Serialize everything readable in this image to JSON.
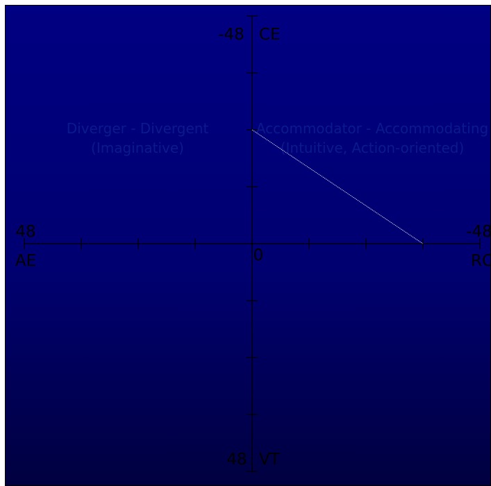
{
  "chart_data": {
    "type": "line",
    "title": "",
    "background_gradient": [
      "#000082",
      "#000040"
    ],
    "line_color": "#c8c8e0",
    "quadrant_text_color": "#0a1a8c",
    "axes": {
      "x": {
        "left_value": "48",
        "right_value": "-48",
        "left_label": "AE",
        "right_label": "RO",
        "range": [
          48,
          -48
        ],
        "tick_step": 12
      },
      "y": {
        "top_value": "-48",
        "bottom_value": "48",
        "top_label": "CE",
        "bottom_label": "VT",
        "range": [
          -48,
          48
        ],
        "tick_step": 12
      },
      "origin_label": "0"
    },
    "quadrant_labels": {
      "top_left": [
        "Diverger - Divergent",
        "(Imaginative)"
      ],
      "top_right": [
        "Accommodator - Accommodating",
        "(Intuitive, Action-oriented)"
      ]
    },
    "series": [
      {
        "x": [
          0,
          -36
        ],
        "y": [
          -24,
          0
        ]
      }
    ]
  }
}
